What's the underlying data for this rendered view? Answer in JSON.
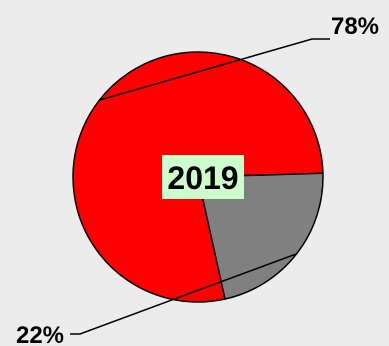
{
  "chart_data": {
    "type": "pie",
    "center_label": "2019",
    "slices": [
      {
        "value": 78,
        "label": "78%",
        "color": "#ff0000"
      },
      {
        "value": 22,
        "label": "22%",
        "color": "#808080"
      }
    ],
    "label_box_color": "#ccffcc",
    "background": "#ececec"
  }
}
